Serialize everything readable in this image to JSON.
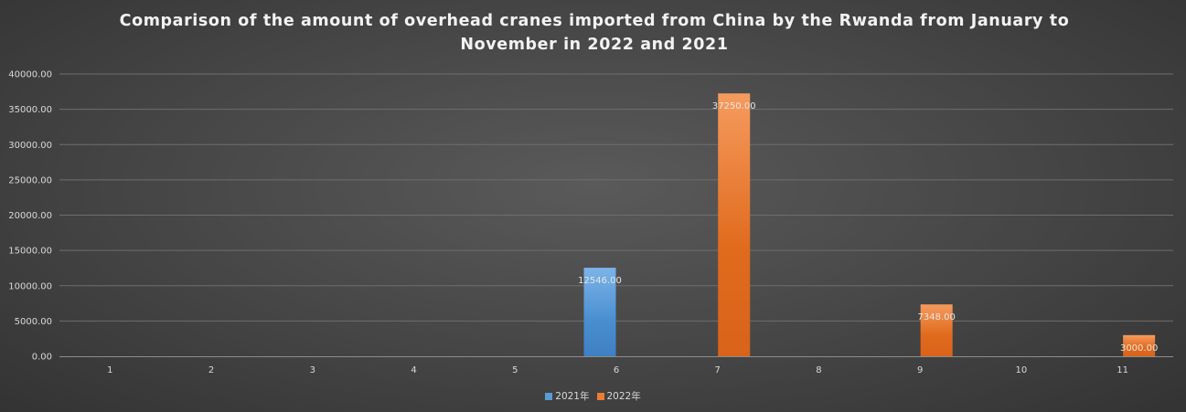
{
  "chart_data": {
    "type": "bar",
    "title": "Comparison of the amount of overhead cranes imported from China by the Rwanda from January to November in 2022 and 2021",
    "categories": [
      "1",
      "2",
      "3",
      "4",
      "5",
      "6",
      "7",
      "8",
      "9",
      "10",
      "11"
    ],
    "series": [
      {
        "name": "2021年",
        "color": "#5b9bd5",
        "values": [
          0,
          0,
          0,
          0,
          0,
          12546,
          0,
          0,
          0,
          0,
          0
        ]
      },
      {
        "name": "2022年",
        "color": "#ed7d31",
        "values": [
          0,
          0,
          0,
          0,
          0,
          0,
          37250,
          0,
          7348,
          0,
          3000
        ]
      }
    ],
    "data_labels": [
      {
        "series": 0,
        "category": "6",
        "text": "12546.00"
      },
      {
        "series": 1,
        "category": "7",
        "text": "37250.00"
      },
      {
        "series": 1,
        "category": "9",
        "text": "7348.00"
      },
      {
        "series": 1,
        "category": "11",
        "text": "3000.00"
      }
    ],
    "y_ticks": [
      "0.00",
      "5000.00",
      "10000.00",
      "15000.00",
      "20000.00",
      "25000.00",
      "30000.00",
      "35000.00",
      "40000.00"
    ],
    "ylim": [
      0,
      40000
    ],
    "grid": true,
    "legend_position": "bottom"
  }
}
